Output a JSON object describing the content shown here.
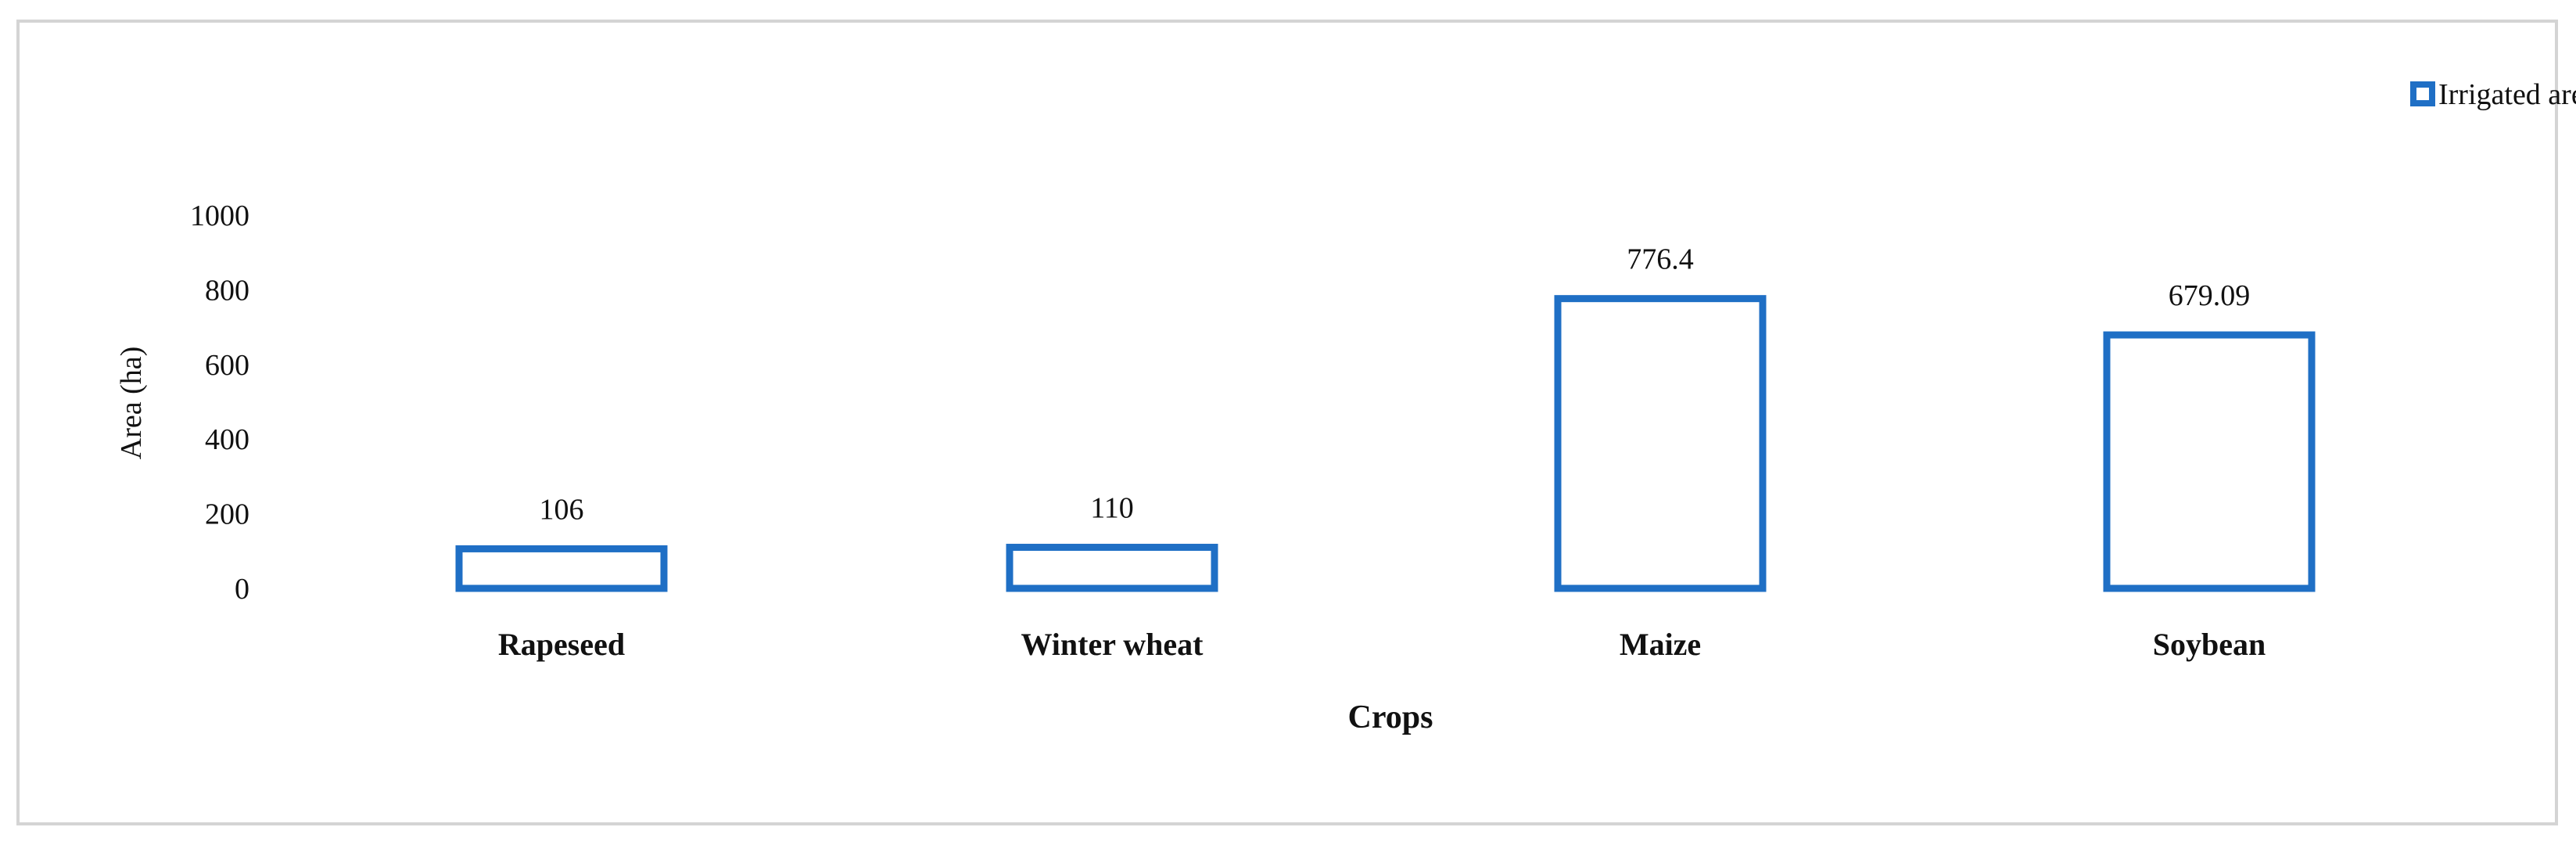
{
  "chart_data": {
    "type": "bar",
    "title": "",
    "xlabel": "Crops",
    "ylabel": "Area (ha)",
    "categories": [
      "Rapeseed",
      "Winter wheat",
      "Maize",
      "Soybean"
    ],
    "series": [
      {
        "name": "Irrigated areas",
        "values": [
          106,
          110,
          776.4,
          679.09
        ],
        "labels": [
          "106",
          "110",
          "776.4",
          "679.09"
        ]
      }
    ],
    "ylim": [
      0,
      1000
    ],
    "yticks": [
      0,
      200,
      400,
      600,
      800,
      1000
    ],
    "grid": false,
    "legend_position": "top-right",
    "bar_style": "outline",
    "colors": {
      "bar_stroke": "#1f6fc5",
      "frame": "#d4d4d4"
    }
  }
}
